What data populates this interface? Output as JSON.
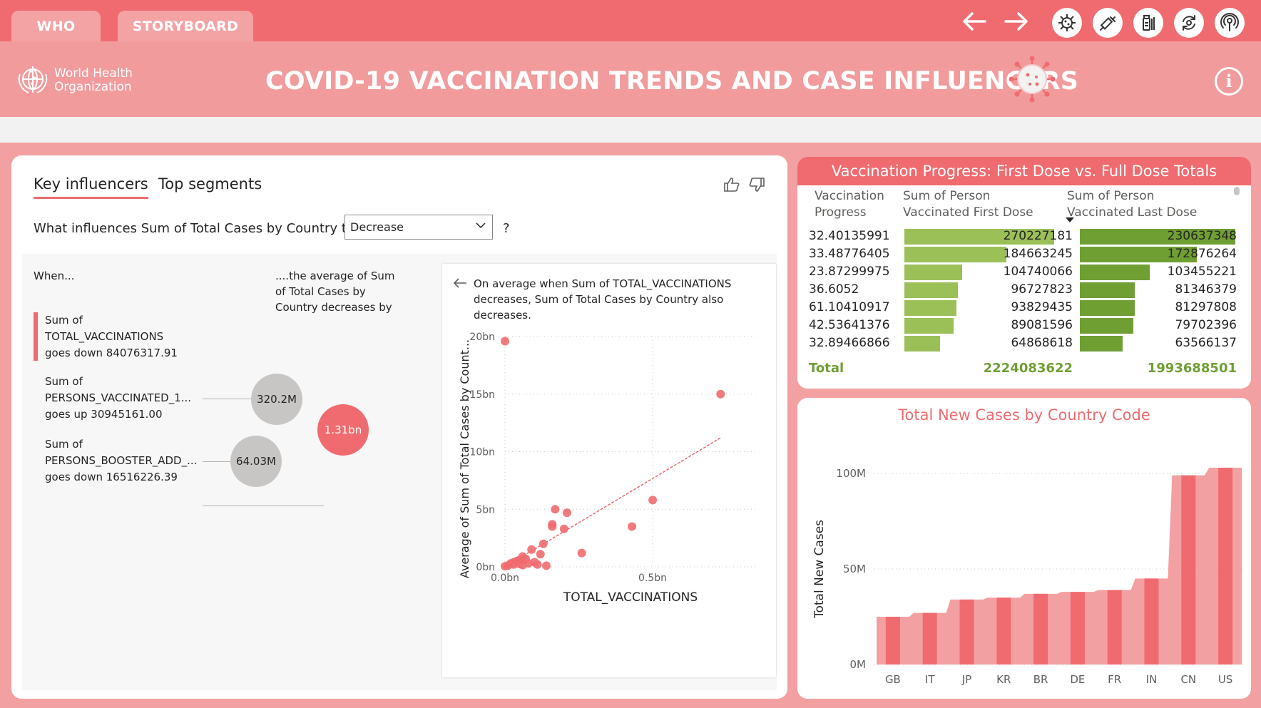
{
  "topbar": {
    "tabs": [
      "WHO",
      "STORYBOARD"
    ],
    "nav_icons": [
      "back-arrow-icon",
      "forward-arrow-icon"
    ],
    "action_icons": [
      "virus-icon",
      "syringe-icon",
      "vaccine-vial-icon",
      "refresh-icon",
      "podcast-icon"
    ]
  },
  "header": {
    "logo_line1": "World Health",
    "logo_line2": "Organization",
    "title": "COVID-19 VACCINATION TRENDS AND CASE INFLUENCERS",
    "info_symbol": "i"
  },
  "key_influencers": {
    "tab_key": "Key influencers",
    "tab_segments": "Top segments",
    "question_prefix": "What influences Sum of Total Cases by Country to",
    "dropdown_value": "Decrease",
    "question_suffix": "?",
    "when_label": "When...",
    "avg_label": "....the average of Sum of Total Cases by Country decreases by",
    "influencers": [
      {
        "line1": "Sum of",
        "line2": "TOTAL_VACCINATIONS",
        "line3": "goes down 84076317.91",
        "value": "1.31bn",
        "selected": true
      },
      {
        "line1": "Sum of",
        "line2": "PERSONS_VACCINATED_1...",
        "line3": "goes up 30945161.00",
        "value": "320.2M",
        "selected": false
      },
      {
        "line1": "Sum of",
        "line2": "PERSONS_BOOSTER_ADD_...",
        "line3": "goes down 16516226.39",
        "value": "64.03M",
        "selected": false
      }
    ],
    "scatter_desc": "On average when Sum of TOTAL_VACCINATIONS decreases, Sum of Total Cases by Country also decreases."
  },
  "colors": {
    "accent": "#ef6b6f",
    "accent_light": "#f29b9d",
    "green_first": "#9bc058",
    "green_last": "#6f9e33",
    "bubble_grey": "#c8c6c4"
  },
  "vaccination_table": {
    "title": "Vaccination Progress: First Dose vs. Full Dose Totals",
    "headers": [
      "Vaccination Progress",
      "Sum of Person Vaccinated First Dose",
      "Sum of Person Vaccinated Last Dose"
    ],
    "rows": [
      {
        "progress": "32.40135991",
        "first": "270227181",
        "last": "230637348",
        "first_frac": 1.0,
        "last_frac": 1.0
      },
      {
        "progress": "33.48776405",
        "first": "184663245",
        "last": "172876264",
        "first_frac": 0.683,
        "last_frac": 0.75
      },
      {
        "progress": "23.87299975",
        "first": "104740066",
        "last": "103455221",
        "first_frac": 0.388,
        "last_frac": 0.449
      },
      {
        "progress": "36.6052",
        "first": "96727823",
        "last": "81346379",
        "first_frac": 0.358,
        "last_frac": 0.353
      },
      {
        "progress": "61.10410917",
        "first": "93829435",
        "last": "81297808",
        "first_frac": 0.347,
        "last_frac": 0.352
      },
      {
        "progress": "42.53641376",
        "first": "89081596",
        "last": "79702396",
        "first_frac": 0.33,
        "last_frac": 0.346
      },
      {
        "progress": "32.89466866",
        "first": "64868618",
        "last": "63566137",
        "first_frac": 0.24,
        "last_frac": 0.276
      }
    ],
    "total_label": "Total",
    "total_first": "2224083622",
    "total_last": "1993688501"
  },
  "chart_data": [
    {
      "type": "scatter",
      "xlabel": "TOTAL_VACCINATIONS",
      "ylabel": "Average of Sum of Total Cases by Count...",
      "x_ticks": [
        "0.0bn",
        "0.5bn"
      ],
      "y_ticks": [
        "0bn",
        "5bn",
        "10bn",
        "15bn",
        "20bn"
      ],
      "xlim": [
        0,
        0.85
      ],
      "ylim": [
        0,
        20
      ],
      "grid": true,
      "trend_line": [
        [
          0,
          0
        ],
        [
          0.73,
          11.2
        ]
      ],
      "points": [
        [
          0.73,
          15.0
        ],
        [
          0.5,
          5.8
        ],
        [
          0.43,
          3.5
        ],
        [
          0.17,
          5.0
        ],
        [
          0.21,
          4.7
        ],
        [
          0.16,
          3.7
        ],
        [
          0.16,
          3.5
        ],
        [
          0.2,
          3.3
        ],
        [
          0.26,
          1.2
        ],
        [
          0.13,
          2.0
        ],
        [
          0.12,
          1.1
        ],
        [
          0.09,
          1.5
        ],
        [
          0.07,
          0.7
        ],
        [
          0.06,
          0.9
        ],
        [
          0.05,
          0.6
        ],
        [
          0.04,
          0.5
        ],
        [
          0.03,
          0.4
        ],
        [
          0.02,
          0.3
        ],
        [
          0.03,
          0.2
        ],
        [
          0.01,
          0.1
        ],
        [
          0.08,
          0.3
        ],
        [
          0.1,
          0.4
        ],
        [
          0.11,
          0.2
        ],
        [
          0.14,
          0.1
        ],
        [
          0.0,
          0.05
        ],
        [
          0.05,
          0.25
        ],
        [
          0.06,
          0.15
        ],
        [
          0.0,
          19.6
        ]
      ]
    },
    {
      "type": "bar",
      "title": "Total New Cases by Country Code",
      "ylabel": "Total New Cases",
      "categories": [
        "GB",
        "IT",
        "JP",
        "KR",
        "BR",
        "DE",
        "FR",
        "IN",
        "CN",
        "US"
      ],
      "values": [
        25,
        27,
        34,
        35,
        37,
        38,
        39,
        45,
        99,
        103
      ],
      "y_ticks": [
        "0M",
        "50M",
        "100M"
      ],
      "ylim": [
        0,
        100
      ],
      "grid": true
    }
  ]
}
